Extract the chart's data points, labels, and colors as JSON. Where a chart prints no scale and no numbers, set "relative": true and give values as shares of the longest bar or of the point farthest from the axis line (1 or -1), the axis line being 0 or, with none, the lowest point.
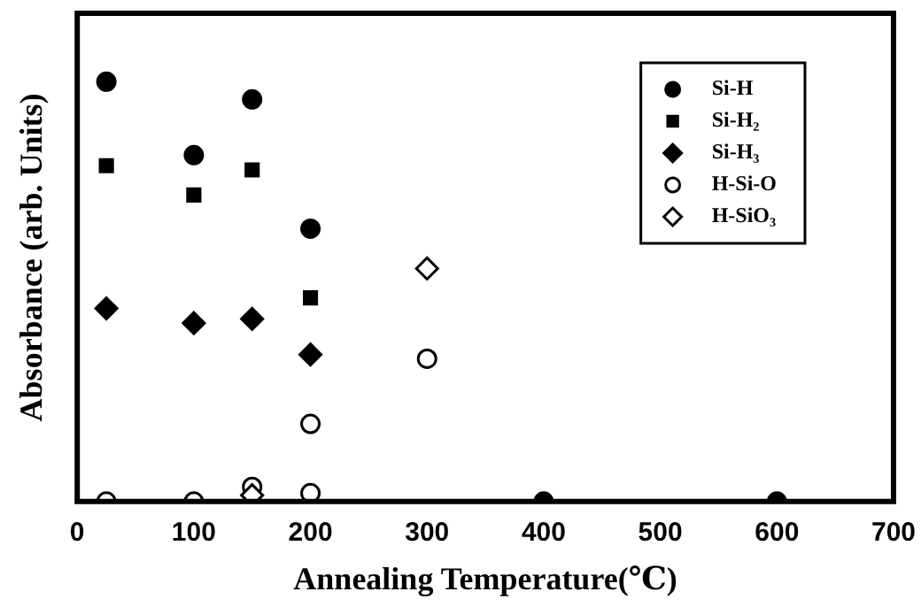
{
  "chart_data": {
    "type": "scatter",
    "xlabel": "Annealing Temperature(℃)",
    "ylabel": "Absorbance (arb. Units)",
    "relative": true,
    "xlim": [
      0,
      700
    ],
    "xticks": [
      0,
      100,
      200,
      300,
      400,
      500,
      600,
      700
    ],
    "grid": false,
    "legend": "top right",
    "series": [
      {
        "name": "Si-H",
        "color": "#000000",
        "marker": "circle",
        "x": [
          25,
          100,
          150,
          200,
          400,
          600
        ],
        "values": [
          1,
          0.825,
          0.958,
          0.65,
          0,
          0
        ]
      },
      {
        "name": "Si-H₂",
        "color": "#000000",
        "marker": "square",
        "x": [
          25,
          100,
          150,
          200
        ],
        "values": [
          0.8,
          0.73,
          0.79,
          0.485
        ]
      },
      {
        "name": "Si-H₃",
        "color": "#000000",
        "marker": "diamond",
        "x": [
          25,
          100,
          150,
          200
        ],
        "values": [
          0.46,
          0.425,
          0.435,
          0.35
        ]
      },
      {
        "name": "H-Si-O",
        "color": "#ffffff",
        "marker": "circle",
        "x": [
          25,
          100,
          150,
          200,
          200,
          300
        ],
        "values": [
          0,
          0,
          0.035,
          0.185,
          0.02,
          0.34
        ]
      },
      {
        "name": "H-SiO₃",
        "color": "#ffffff",
        "marker": "diamond",
        "x": [
          150,
          300
        ],
        "values": [
          0.015,
          0.555
        ]
      }
    ]
  }
}
